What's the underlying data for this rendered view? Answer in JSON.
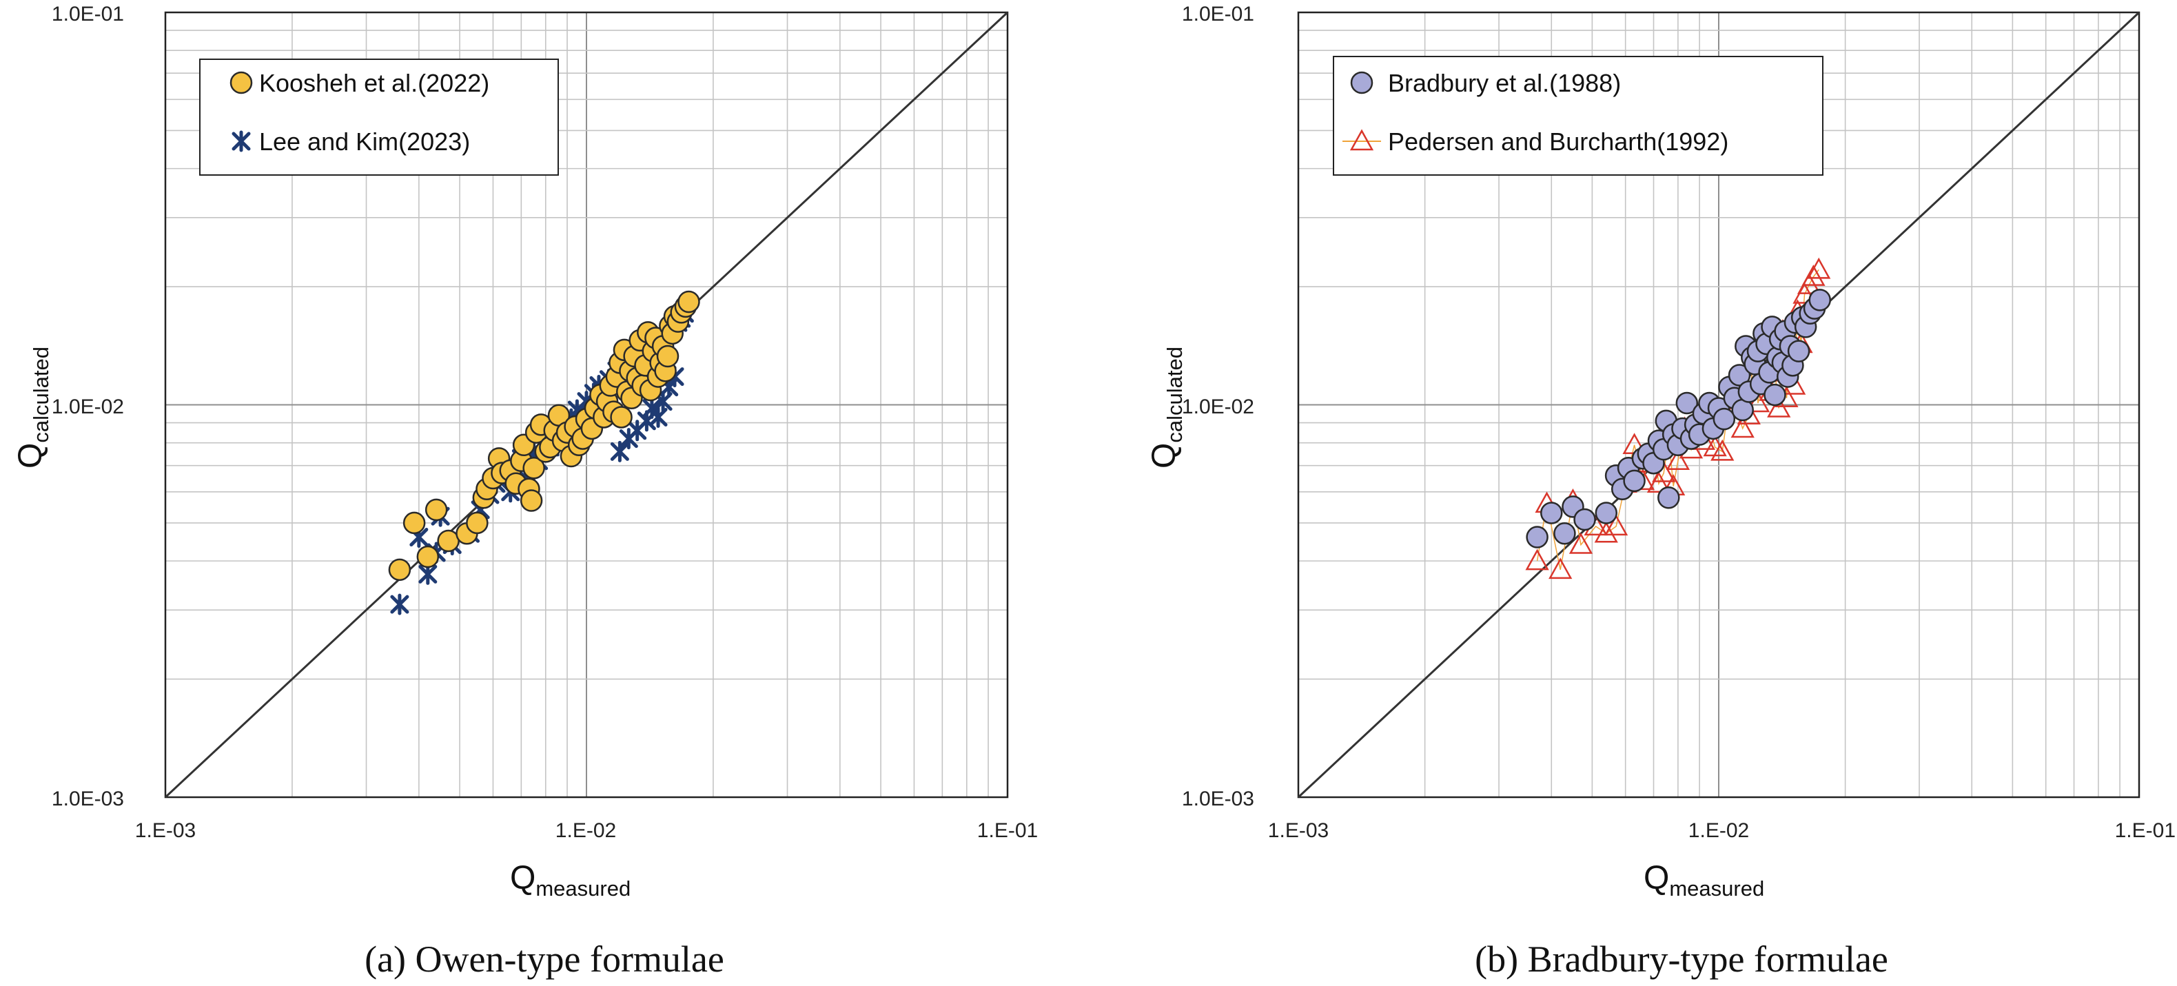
{
  "chart_data": [
    {
      "type": "scatter",
      "scale": "log-log",
      "grid": true,
      "legend_position": "top-left",
      "reference_line": "1:1",
      "xlim": [
        0.001,
        0.1
      ],
      "ylim": [
        0.001,
        0.1
      ],
      "x_tick_labels": [
        "1.E-03",
        "1.E-02",
        "1.E-01"
      ],
      "y_tick_labels": [
        "1.0E-03",
        "1.0E-02",
        "1.0E-01"
      ],
      "xlabel": {
        "main": "Q",
        "sub": "measured"
      },
      "ylabel": {
        "main": "Q",
        "sub": "calculated"
      },
      "caption": "(a)  Owen-type  formulae",
      "series": [
        {
          "name": "Koosheh et al.(2022)",
          "marker": "circle",
          "color": "#f5c242",
          "edge": "#2a2a2a",
          "points": [
            [
              0.0036,
              0.0038
            ],
            [
              0.0039,
              0.005
            ],
            [
              0.0042,
              0.0041
            ],
            [
              0.0044,
              0.0054
            ],
            [
              0.0047,
              0.0045
            ],
            [
              0.0052,
              0.0047
            ],
            [
              0.0055,
              0.005
            ],
            [
              0.0057,
              0.0058
            ],
            [
              0.0058,
              0.0061
            ],
            [
              0.006,
              0.0065
            ],
            [
              0.0062,
              0.0073
            ],
            [
              0.0063,
              0.0067
            ],
            [
              0.0066,
              0.0068
            ],
            [
              0.0068,
              0.0063
            ],
            [
              0.007,
              0.0072
            ],
            [
              0.0071,
              0.0079
            ],
            [
              0.0073,
              0.0061
            ],
            [
              0.0074,
              0.0057
            ],
            [
              0.0075,
              0.0069
            ],
            [
              0.0076,
              0.0085
            ],
            [
              0.0078,
              0.0089
            ],
            [
              0.008,
              0.0076
            ],
            [
              0.0082,
              0.0078
            ],
            [
              0.0084,
              0.0086
            ],
            [
              0.0086,
              0.0094
            ],
            [
              0.0088,
              0.0081
            ],
            [
              0.009,
              0.0085
            ],
            [
              0.0092,
              0.0074
            ],
            [
              0.0094,
              0.0088
            ],
            [
              0.0096,
              0.0079
            ],
            [
              0.0098,
              0.0082
            ],
            [
              0.01,
              0.0092
            ],
            [
              0.0103,
              0.0087
            ],
            [
              0.0105,
              0.0098
            ],
            [
              0.0108,
              0.0106
            ],
            [
              0.011,
              0.0093
            ],
            [
              0.0112,
              0.0102
            ],
            [
              0.0114,
              0.0112
            ],
            [
              0.0116,
              0.0096
            ],
            [
              0.0118,
              0.0118
            ],
            [
              0.012,
              0.0128
            ],
            [
              0.0121,
              0.0093
            ],
            [
              0.0123,
              0.0138
            ],
            [
              0.0125,
              0.0108
            ],
            [
              0.0127,
              0.0122
            ],
            [
              0.0128,
              0.0104
            ],
            [
              0.013,
              0.0133
            ],
            [
              0.0132,
              0.0117
            ],
            [
              0.0134,
              0.0146
            ],
            [
              0.0136,
              0.0112
            ],
            [
              0.0138,
              0.0126
            ],
            [
              0.014,
              0.0153
            ],
            [
              0.0142,
              0.0109
            ],
            [
              0.0144,
              0.0137
            ],
            [
              0.0146,
              0.0148
            ],
            [
              0.0148,
              0.0118
            ],
            [
              0.015,
              0.0128
            ],
            [
              0.0152,
              0.0141
            ],
            [
              0.0154,
              0.0122
            ],
            [
              0.0156,
              0.0133
            ],
            [
              0.0158,
              0.0159
            ],
            [
              0.016,
              0.0152
            ],
            [
              0.0162,
              0.0168
            ],
            [
              0.0165,
              0.0163
            ],
            [
              0.0168,
              0.0172
            ],
            [
              0.0172,
              0.0178
            ],
            [
              0.0175,
              0.0183
            ]
          ]
        },
        {
          "name": "Lee and Kim(2023)",
          "marker": "asterisk",
          "color": "#1f3b73",
          "points": [
            [
              0.0036,
              0.0031
            ],
            [
              0.004,
              0.0046
            ],
            [
              0.0042,
              0.0037
            ],
            [
              0.0044,
              0.0042
            ],
            [
              0.0045,
              0.0052
            ],
            [
              0.0048,
              0.0044
            ],
            [
              0.0053,
              0.0047
            ],
            [
              0.0056,
              0.0054
            ],
            [
              0.0059,
              0.0059
            ],
            [
              0.0061,
              0.0063
            ],
            [
              0.0064,
              0.0066
            ],
            [
              0.0066,
              0.006
            ],
            [
              0.0068,
              0.0069
            ],
            [
              0.007,
              0.0073
            ],
            [
              0.0072,
              0.0067
            ],
            [
              0.0075,
              0.0076
            ],
            [
              0.0077,
              0.0072
            ],
            [
              0.0079,
              0.0081
            ],
            [
              0.0082,
              0.0078
            ],
            [
              0.0084,
              0.0085
            ],
            [
              0.0086,
              0.0093
            ],
            [
              0.0089,
              0.0087
            ],
            [
              0.0092,
              0.0092
            ],
            [
              0.0095,
              0.0097
            ],
            [
              0.0098,
              0.0094
            ],
            [
              0.01,
              0.0102
            ],
            [
              0.0104,
              0.0107
            ],
            [
              0.0107,
              0.0112
            ],
            [
              0.011,
              0.0108
            ],
            [
              0.0113,
              0.0116
            ],
            [
              0.0116,
              0.0113
            ],
            [
              0.0118,
              0.0122
            ],
            [
              0.012,
              0.0076
            ],
            [
              0.0121,
              0.0127
            ],
            [
              0.0124,
              0.0122
            ],
            [
              0.0126,
              0.0082
            ],
            [
              0.0127,
              0.0131
            ],
            [
              0.013,
              0.0127
            ],
            [
              0.0132,
              0.0086
            ],
            [
              0.0134,
              0.0136
            ],
            [
              0.0137,
              0.0133
            ],
            [
              0.0139,
              0.0091
            ],
            [
              0.014,
              0.0142
            ],
            [
              0.0143,
              0.0098
            ],
            [
              0.0146,
              0.0138
            ],
            [
              0.0148,
              0.0093
            ],
            [
              0.015,
              0.0147
            ],
            [
              0.0152,
              0.0102
            ],
            [
              0.0155,
              0.0143
            ],
            [
              0.0157,
              0.0111
            ],
            [
              0.016,
              0.0156
            ],
            [
              0.0162,
              0.0118
            ],
            [
              0.0165,
              0.0162
            ],
            [
              0.0168,
              0.0166
            ],
            [
              0.0171,
              0.0171
            ]
          ]
        }
      ]
    },
    {
      "type": "scatter",
      "scale": "log-log",
      "grid": true,
      "legend_position": "top-left",
      "reference_line": "1:1",
      "xlim": [
        0.001,
        0.1
      ],
      "ylim": [
        0.001,
        0.1
      ],
      "x_tick_labels": [
        "1.E-03",
        "1.E-02",
        "1.E-01"
      ],
      "y_tick_labels": [
        "1.0E-03",
        "1.0E-02",
        "1.0E-01"
      ],
      "xlabel": {
        "main": "Q",
        "sub": "measured"
      },
      "ylabel": {
        "main": "Q",
        "sub": "calculated"
      },
      "caption": "(b)  Bradbury-type  formulae",
      "series": [
        {
          "name": "Bradbury et al.(1988)",
          "marker": "circle",
          "color": "#a8aad8",
          "edge": "#2a2a2a",
          "points": [
            [
              0.0037,
              0.0046
            ],
            [
              0.004,
              0.0053
            ],
            [
              0.0043,
              0.0047
            ],
            [
              0.0045,
              0.0055
            ],
            [
              0.0048,
              0.0051
            ],
            [
              0.0054,
              0.0053
            ],
            [
              0.0057,
              0.0066
            ],
            [
              0.0059,
              0.0061
            ],
            [
              0.0061,
              0.0069
            ],
            [
              0.0063,
              0.0064
            ],
            [
              0.0066,
              0.0073
            ],
            [
              0.0068,
              0.0075
            ],
            [
              0.007,
              0.0071
            ],
            [
              0.0072,
              0.0081
            ],
            [
              0.0074,
              0.0077
            ],
            [
              0.0075,
              0.0091
            ],
            [
              0.0076,
              0.0058
            ],
            [
              0.0078,
              0.0084
            ],
            [
              0.008,
              0.0079
            ],
            [
              0.0082,
              0.0087
            ],
            [
              0.0084,
              0.0101
            ],
            [
              0.0086,
              0.0082
            ],
            [
              0.0088,
              0.0089
            ],
            [
              0.009,
              0.0084
            ],
            [
              0.0092,
              0.0095
            ],
            [
              0.0095,
              0.0101
            ],
            [
              0.0097,
              0.0087
            ],
            [
              0.01,
              0.0098
            ],
            [
              0.0103,
              0.0092
            ],
            [
              0.0106,
              0.0111
            ],
            [
              0.0109,
              0.0104
            ],
            [
              0.0112,
              0.0119
            ],
            [
              0.0114,
              0.0097
            ],
            [
              0.0116,
              0.0141
            ],
            [
              0.0118,
              0.0108
            ],
            [
              0.012,
              0.0132
            ],
            [
              0.0122,
              0.0127
            ],
            [
              0.0124,
              0.0137
            ],
            [
              0.0126,
              0.0113
            ],
            [
              0.0128,
              0.0152
            ],
            [
              0.013,
              0.0143
            ],
            [
              0.0132,
              0.0121
            ],
            [
              0.0134,
              0.0158
            ],
            [
              0.0136,
              0.0106
            ],
            [
              0.0138,
              0.0132
            ],
            [
              0.014,
              0.0147
            ],
            [
              0.0142,
              0.0128
            ],
            [
              0.0144,
              0.0154
            ],
            [
              0.0146,
              0.0118
            ],
            [
              0.0148,
              0.0141
            ],
            [
              0.015,
              0.0126
            ],
            [
              0.0152,
              0.0162
            ],
            [
              0.0155,
              0.0137
            ],
            [
              0.0158,
              0.0167
            ],
            [
              0.0161,
              0.0158
            ],
            [
              0.0165,
              0.0171
            ],
            [
              0.0169,
              0.0176
            ],
            [
              0.0174,
              0.0185
            ]
          ]
        },
        {
          "name": "Pedersen and Burcharth(1992)",
          "marker": "triangle",
          "color": "#d9362b",
          "connector": "#f0a33a",
          "points": [
            [
              0.0037,
              0.004
            ],
            [
              0.0039,
              0.0056
            ],
            [
              0.0042,
              0.0038
            ],
            [
              0.0045,
              0.0057
            ],
            [
              0.0047,
              0.0044
            ],
            [
              0.0051,
              0.0049
            ],
            [
              0.0054,
              0.0047
            ],
            [
              0.0057,
              0.0049
            ],
            [
              0.006,
              0.0063
            ],
            [
              0.0063,
              0.0079
            ],
            [
              0.0066,
              0.0064
            ],
            [
              0.0068,
              0.0071
            ],
            [
              0.007,
              0.0078
            ],
            [
              0.0072,
              0.0063
            ],
            [
              0.0074,
              0.0067
            ],
            [
              0.0076,
              0.0083
            ],
            [
              0.0078,
              0.0062
            ],
            [
              0.008,
              0.0072
            ],
            [
              0.0083,
              0.0087
            ],
            [
              0.0086,
              0.0077
            ],
            [
              0.0089,
              0.0092
            ],
            [
              0.0092,
              0.0081
            ],
            [
              0.0095,
              0.0088
            ],
            [
              0.0098,
              0.0078
            ],
            [
              0.0102,
              0.0076
            ],
            [
              0.0106,
              0.0103
            ],
            [
              0.011,
              0.0098
            ],
            [
              0.0114,
              0.0087
            ],
            [
              0.0118,
              0.0094
            ],
            [
              0.0121,
              0.0136
            ],
            [
              0.0124,
              0.0101
            ],
            [
              0.0127,
              0.0113
            ],
            [
              0.013,
              0.0145
            ],
            [
              0.0133,
              0.0108
            ],
            [
              0.0136,
              0.0121
            ],
            [
              0.0139,
              0.0098
            ],
            [
              0.0142,
              0.0154
            ],
            [
              0.0145,
              0.0104
            ],
            [
              0.0148,
              0.0131
            ],
            [
              0.0151,
              0.0112
            ],
            [
              0.0154,
              0.0173
            ],
            [
              0.0157,
              0.0143
            ],
            [
              0.016,
              0.0191
            ],
            [
              0.0164,
              0.0202
            ],
            [
              0.0168,
              0.0212
            ],
            [
              0.0173,
              0.0221
            ]
          ]
        }
      ]
    }
  ]
}
